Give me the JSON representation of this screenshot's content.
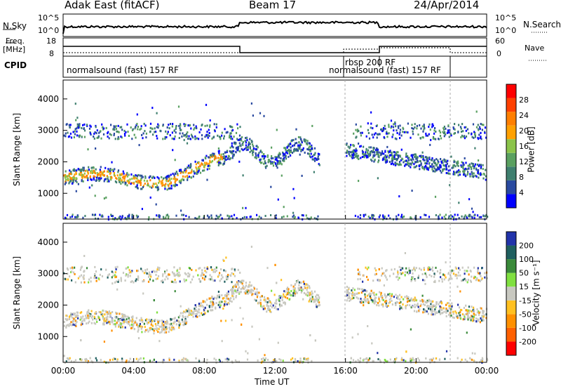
{
  "header": {
    "title": "Adak East (fitACF)",
    "beam": "Beam 17",
    "date": "24/Apr/2014"
  },
  "sky_panel": {
    "left_label": "N.Sky",
    "right_label": "N.Search",
    "left_ticks": [
      "10^5",
      "10^0"
    ],
    "right_ticks": [
      "10^5",
      "10^0"
    ]
  },
  "freq_panel": {
    "left_label_1": "Freq.",
    "left_label_2": "[MHz]",
    "left_ticks": [
      "18",
      "8"
    ],
    "right_label": "Nave",
    "right_ticks": [
      "60",
      "0"
    ]
  },
  "cpid_panel": {
    "label": "CPID",
    "programs": [
      {
        "name": "normalsound (fast) 157 RF",
        "start": "00:00"
      },
      {
        "name": "rbsp 200 RF",
        "start": "16:00"
      },
      {
        "name": "normalsound (fast) 157 RF",
        "start": "18:00"
      }
    ]
  },
  "colors": {
    "power_scale": [
      "#0000ff",
      "#2a4aa0",
      "#3f7f6f",
      "#5aa060",
      "#8bc34a",
      "#ffa000",
      "#ff7f00",
      "#ff4000",
      "#ff0000"
    ],
    "velocity_scale": [
      "#2233aa",
      "#1f5f5f",
      "#3a8a3a",
      "#80e040",
      "#c8c8c0",
      "#ffc020",
      "#ff9000",
      "#ff6000",
      "#ff0000"
    ]
  },
  "chart_data": [
    {
      "type": "heatmap",
      "title": "Power",
      "xlabel": "Time UT",
      "ylabel": "Slant Range [km]",
      "x_ticks": [
        "00:00",
        "04:00",
        "08:00",
        "12:00",
        "16:00",
        "20:00",
        "00:00"
      ],
      "y_ticks": [
        "1000",
        "2000",
        "3000",
        "4000"
      ],
      "colorbar_label": "Power [dB]",
      "colorbar_ticks": [
        "4",
        "8",
        "12",
        "16",
        "20",
        "24",
        "28"
      ],
      "xlim": [
        "00:00",
        "24:00"
      ],
      "ylim": [
        180,
        4600
      ]
    },
    {
      "type": "heatmap",
      "title": "Velocity",
      "xlabel": "Time UT",
      "ylabel": "Slant Range [km]",
      "x_ticks": [
        "00:00",
        "04:00",
        "08:00",
        "12:00",
        "16:00",
        "20:00",
        "00:00"
      ],
      "y_ticks": [
        "1000",
        "2000",
        "3000",
        "4000"
      ],
      "colorbar_label": "Velocity [m s⁻¹]",
      "colorbar_ticks": [
        "200",
        "100",
        "50",
        "15",
        "-15",
        "-50",
        "-100",
        "-200"
      ],
      "xlim": [
        "00:00",
        "24:00"
      ],
      "ylim": [
        180,
        4600
      ]
    }
  ],
  "axis_title": "Time UT"
}
